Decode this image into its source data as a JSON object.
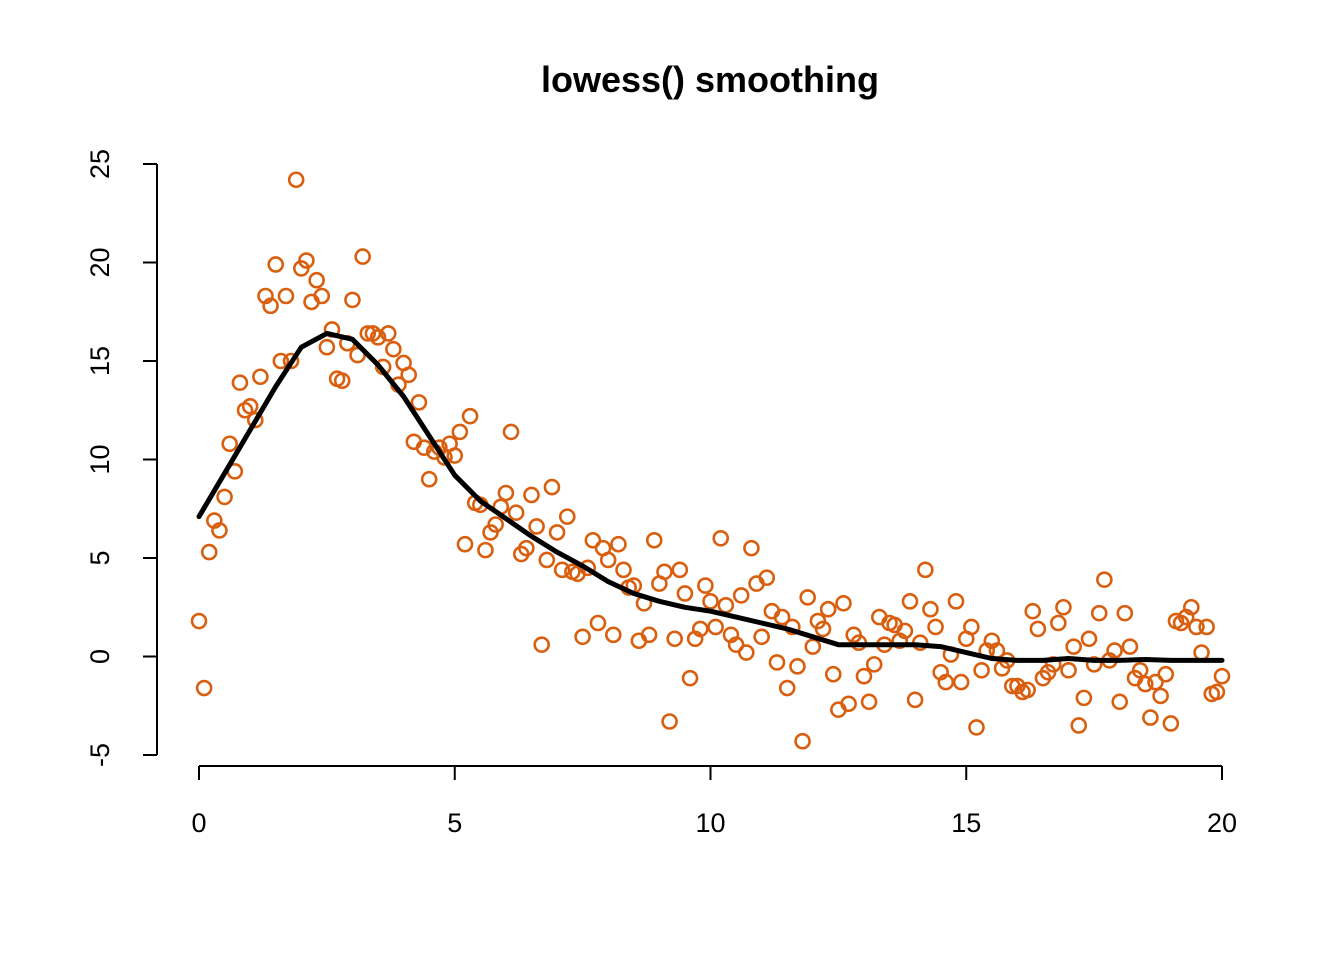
{
  "chart_data": {
    "type": "scatter",
    "title": "lowess() smoothing",
    "xlabel": "",
    "ylabel": "",
    "xlim": [
      0,
      20
    ],
    "ylim": [
      -5,
      25
    ],
    "x_ticks": [
      0,
      5,
      10,
      15,
      20
    ],
    "y_ticks": [
      -5,
      0,
      5,
      10,
      15,
      20,
      25
    ],
    "grid": false,
    "point_color": "#D95F0E",
    "line_color": "#000000",
    "points": [
      [
        0.0,
        1.8
      ],
      [
        0.1,
        -1.6
      ],
      [
        0.2,
        5.3
      ],
      [
        0.3,
        6.9
      ],
      [
        0.4,
        6.4
      ],
      [
        0.5,
        8.1
      ],
      [
        0.6,
        10.8
      ],
      [
        0.7,
        9.4
      ],
      [
        0.8,
        13.9
      ],
      [
        0.9,
        12.5
      ],
      [
        1.0,
        12.7
      ],
      [
        1.1,
        12.0
      ],
      [
        1.2,
        14.2
      ],
      [
        1.3,
        18.3
      ],
      [
        1.4,
        17.8
      ],
      [
        1.5,
        19.9
      ],
      [
        1.6,
        15.0
      ],
      [
        1.7,
        18.3
      ],
      [
        1.8,
        15.0
      ],
      [
        1.9,
        24.2
      ],
      [
        2.0,
        19.7
      ],
      [
        2.1,
        20.1
      ],
      [
        2.2,
        18.0
      ],
      [
        2.3,
        19.1
      ],
      [
        2.4,
        18.3
      ],
      [
        2.5,
        15.7
      ],
      [
        2.6,
        16.6
      ],
      [
        2.7,
        14.1
      ],
      [
        2.8,
        14.0
      ],
      [
        2.9,
        15.9
      ],
      [
        3.0,
        18.1
      ],
      [
        3.1,
        15.3
      ],
      [
        3.2,
        20.3
      ],
      [
        3.3,
        16.4
      ],
      [
        3.4,
        16.4
      ],
      [
        3.5,
        16.2
      ],
      [
        3.6,
        14.7
      ],
      [
        3.7,
        16.4
      ],
      [
        3.8,
        15.6
      ],
      [
        3.9,
        13.8
      ],
      [
        4.0,
        14.9
      ],
      [
        4.1,
        14.3
      ],
      [
        4.2,
        10.9
      ],
      [
        4.3,
        12.9
      ],
      [
        4.4,
        10.6
      ],
      [
        4.5,
        9.0
      ],
      [
        4.6,
        10.4
      ],
      [
        4.7,
        10.6
      ],
      [
        4.8,
        10.1
      ],
      [
        4.9,
        10.8
      ],
      [
        5.0,
        10.2
      ],
      [
        5.1,
        11.4
      ],
      [
        5.2,
        5.7
      ],
      [
        5.3,
        12.2
      ],
      [
        5.4,
        7.8
      ],
      [
        5.5,
        7.7
      ],
      [
        5.6,
        5.4
      ],
      [
        5.7,
        6.3
      ],
      [
        5.8,
        6.7
      ],
      [
        5.9,
        7.6
      ],
      [
        6.0,
        8.3
      ],
      [
        6.1,
        11.4
      ],
      [
        6.2,
        7.3
      ],
      [
        6.3,
        5.2
      ],
      [
        6.4,
        5.5
      ],
      [
        6.5,
        8.2
      ],
      [
        6.6,
        6.6
      ],
      [
        6.7,
        0.6
      ],
      [
        6.8,
        4.9
      ],
      [
        6.9,
        8.6
      ],
      [
        7.0,
        6.3
      ],
      [
        7.1,
        4.4
      ],
      [
        7.2,
        7.1
      ],
      [
        7.3,
        4.3
      ],
      [
        7.4,
        4.2
      ],
      [
        7.5,
        1.0
      ],
      [
        7.6,
        4.5
      ],
      [
        7.7,
        5.9
      ],
      [
        7.8,
        1.7
      ],
      [
        7.9,
        5.5
      ],
      [
        8.0,
        4.9
      ],
      [
        8.1,
        1.1
      ],
      [
        8.2,
        5.7
      ],
      [
        8.3,
        4.4
      ],
      [
        8.4,
        3.5
      ],
      [
        8.5,
        3.6
      ],
      [
        8.6,
        0.8
      ],
      [
        8.7,
        2.7
      ],
      [
        8.8,
        1.1
      ],
      [
        8.9,
        5.9
      ],
      [
        9.0,
        3.7
      ],
      [
        9.1,
        4.3
      ],
      [
        9.2,
        -3.3
      ],
      [
        9.3,
        0.9
      ],
      [
        9.4,
        4.4
      ],
      [
        9.5,
        3.2
      ],
      [
        9.6,
        -1.1
      ],
      [
        9.7,
        0.9
      ],
      [
        9.8,
        1.4
      ],
      [
        9.9,
        3.6
      ],
      [
        10.0,
        2.8
      ],
      [
        10.1,
        1.5
      ],
      [
        10.2,
        6.0
      ],
      [
        10.3,
        2.6
      ],
      [
        10.4,
        1.1
      ],
      [
        10.5,
        0.6
      ],
      [
        10.6,
        3.1
      ],
      [
        10.7,
        0.2
      ],
      [
        10.8,
        5.5
      ],
      [
        10.9,
        3.7
      ],
      [
        11.0,
        1.0
      ],
      [
        11.1,
        4.0
      ],
      [
        11.2,
        2.3
      ],
      [
        11.3,
        -0.3
      ],
      [
        11.4,
        2.0
      ],
      [
        11.5,
        -1.6
      ],
      [
        11.6,
        1.5
      ],
      [
        11.7,
        -0.5
      ],
      [
        11.8,
        -4.3
      ],
      [
        11.9,
        3.0
      ],
      [
        12.0,
        0.5
      ],
      [
        12.1,
        1.8
      ],
      [
        12.2,
        1.4
      ],
      [
        12.3,
        2.4
      ],
      [
        12.4,
        -0.9
      ],
      [
        12.5,
        -2.7
      ],
      [
        12.6,
        2.7
      ],
      [
        12.7,
        -2.4
      ],
      [
        12.8,
        1.1
      ],
      [
        12.9,
        0.7
      ],
      [
        13.0,
        -1.0
      ],
      [
        13.1,
        -2.3
      ],
      [
        13.2,
        -0.4
      ],
      [
        13.3,
        2.0
      ],
      [
        13.4,
        0.6
      ],
      [
        13.5,
        1.7
      ],
      [
        13.6,
        1.6
      ],
      [
        13.7,
        0.8
      ],
      [
        13.8,
        1.3
      ],
      [
        13.9,
        2.8
      ],
      [
        14.0,
        -2.2
      ],
      [
        14.1,
        0.7
      ],
      [
        14.2,
        4.4
      ],
      [
        14.3,
        2.4
      ],
      [
        14.4,
        1.5
      ],
      [
        14.5,
        -0.8
      ],
      [
        14.6,
        -1.3
      ],
      [
        14.7,
        0.1
      ],
      [
        14.8,
        2.8
      ],
      [
        14.9,
        -1.3
      ],
      [
        15.0,
        0.9
      ],
      [
        15.1,
        1.5
      ],
      [
        15.2,
        -3.6
      ],
      [
        15.3,
        -0.7
      ],
      [
        15.4,
        0.3
      ],
      [
        15.5,
        0.8
      ],
      [
        15.6,
        0.3
      ],
      [
        15.7,
        -0.6
      ],
      [
        15.8,
        -0.2
      ],
      [
        15.9,
        -1.5
      ],
      [
        16.0,
        -1.5
      ],
      [
        16.1,
        -1.8
      ],
      [
        16.2,
        -1.7
      ],
      [
        16.3,
        2.3
      ],
      [
        16.4,
        1.4
      ],
      [
        16.5,
        -1.1
      ],
      [
        16.6,
        -0.8
      ],
      [
        16.7,
        -0.4
      ],
      [
        16.8,
        1.7
      ],
      [
        16.9,
        2.5
      ],
      [
        17.0,
        -0.7
      ],
      [
        17.1,
        0.5
      ],
      [
        17.2,
        -3.5
      ],
      [
        17.3,
        -2.1
      ],
      [
        17.4,
        0.9
      ],
      [
        17.5,
        -0.4
      ],
      [
        17.6,
        2.2
      ],
      [
        17.7,
        3.9
      ],
      [
        17.8,
        -0.2
      ],
      [
        17.9,
        0.3
      ],
      [
        18.0,
        -2.3
      ],
      [
        18.1,
        2.2
      ],
      [
        18.2,
        0.5
      ],
      [
        18.3,
        -1.1
      ],
      [
        18.4,
        -0.7
      ],
      [
        18.5,
        -1.4
      ],
      [
        18.6,
        -3.1
      ],
      [
        18.7,
        -1.3
      ],
      [
        18.8,
        -2.0
      ],
      [
        18.9,
        -0.9
      ],
      [
        19.0,
        -3.4
      ],
      [
        19.1,
        1.8
      ],
      [
        19.2,
        1.7
      ],
      [
        19.3,
        2.0
      ],
      [
        19.4,
        2.5
      ],
      [
        19.5,
        1.5
      ],
      [
        19.6,
        0.2
      ],
      [
        19.7,
        1.5
      ],
      [
        19.8,
        -1.9
      ],
      [
        19.9,
        -1.8
      ],
      [
        20.0,
        -1.0
      ]
    ],
    "lowess_line": {
      "x": [
        0,
        0.5,
        1.0,
        1.5,
        2.0,
        2.5,
        3.0,
        3.5,
        4.0,
        4.5,
        5.0,
        5.5,
        6.0,
        6.5,
        7.0,
        7.5,
        8.0,
        8.5,
        9.0,
        9.5,
        10.0,
        10.5,
        11.0,
        11.5,
        12.0,
        12.5,
        13.0,
        13.5,
        14.0,
        14.5,
        15.0,
        15.5,
        16.0,
        16.5,
        17.0,
        17.5,
        18.0,
        18.5,
        19.0,
        19.5,
        20.0
      ],
      "y": [
        7.1,
        9.3,
        11.5,
        13.7,
        15.7,
        16.4,
        16.1,
        14.8,
        13.2,
        11.2,
        9.2,
        7.9,
        7.0,
        6.1,
        5.3,
        4.6,
        3.8,
        3.2,
        2.8,
        2.5,
        2.3,
        2.0,
        1.7,
        1.4,
        1.0,
        0.6,
        0.6,
        0.6,
        0.6,
        0.5,
        0.2,
        -0.1,
        -0.2,
        -0.2,
        -0.1,
        -0.2,
        -0.2,
        -0.15,
        -0.2,
        -0.2,
        -0.2
      ]
    }
  }
}
